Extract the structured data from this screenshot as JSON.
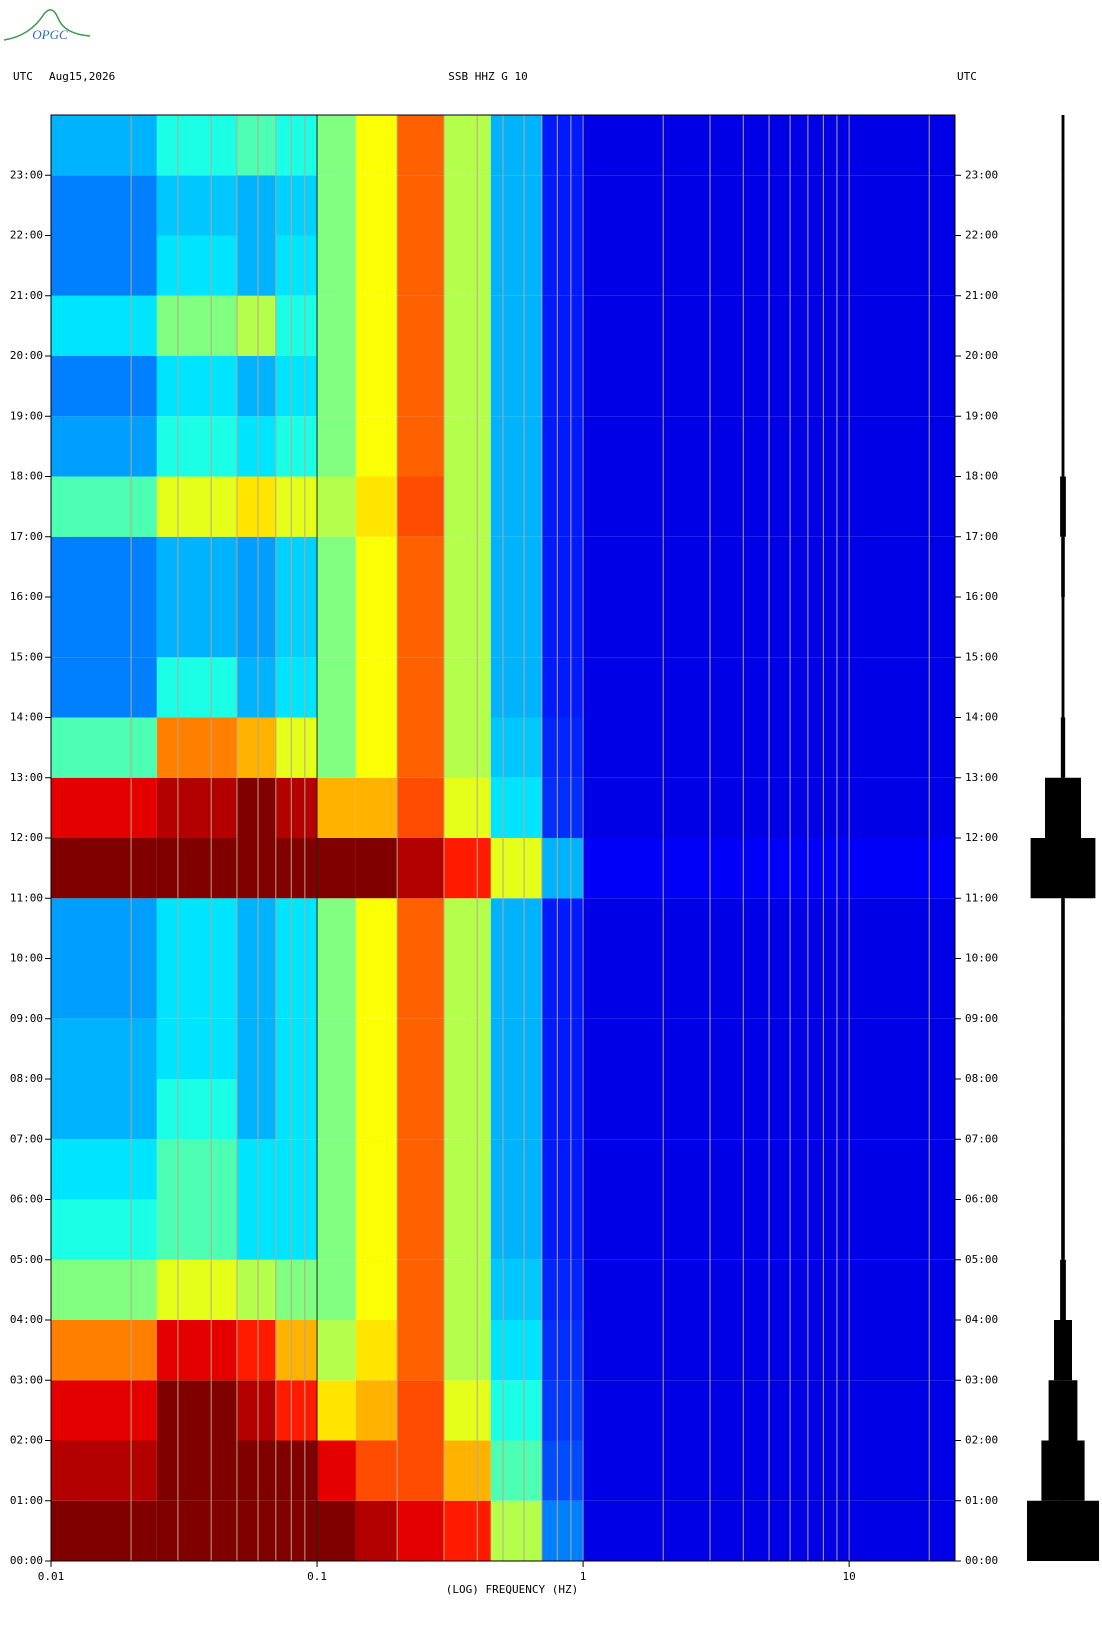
{
  "chart_data": {
    "type": "spectrogram",
    "logo": "OPGC",
    "left_label": "UTC",
    "date": "Aug15,2026",
    "title": "SSB HHZ G 10",
    "right_label": "UTC",
    "xlabel": "(LOG) FREQUENCY (HZ)",
    "xscale": "log",
    "xlim": [
      0.01,
      25
    ],
    "xticks": [
      0.01,
      0.1,
      1,
      10
    ],
    "minor_xticks": [
      0.02,
      0.03,
      0.04,
      0.05,
      0.06,
      0.07,
      0.08,
      0.09,
      0.2,
      0.3,
      0.4,
      0.5,
      0.6,
      0.7,
      0.8,
      0.9,
      2,
      3,
      4,
      5,
      6,
      7,
      8,
      9,
      20
    ],
    "ylim": [
      0,
      24
    ],
    "yticks": [
      {
        "value": 0,
        "label": "00:00"
      },
      {
        "value": 1,
        "label": "01:00"
      },
      {
        "value": 2,
        "label": "02:00"
      },
      {
        "value": 3,
        "label": "03:00"
      },
      {
        "value": 4,
        "label": "04:00"
      },
      {
        "value": 5,
        "label": "05:00"
      },
      {
        "value": 6,
        "label": "06:00"
      },
      {
        "value": 7,
        "label": "07:00"
      },
      {
        "value": 8,
        "label": "08:00"
      },
      {
        "value": 9,
        "label": "09:00"
      },
      {
        "value": 10,
        "label": "10:00"
      },
      {
        "value": 11,
        "label": "11:00"
      },
      {
        "value": 12,
        "label": "12:00"
      },
      {
        "value": 13,
        "label": "13:00"
      },
      {
        "value": 14,
        "label": "14:00"
      },
      {
        "value": 15,
        "label": "15:00"
      },
      {
        "value": 16,
        "label": "16:00"
      },
      {
        "value": 17,
        "label": "17:00"
      },
      {
        "value": 18,
        "label": "18:00"
      },
      {
        "value": 19,
        "label": "19:00"
      },
      {
        "value": 20,
        "label": "20:00"
      },
      {
        "value": 21,
        "label": "21:00"
      },
      {
        "value": 22,
        "label": "22:00"
      },
      {
        "value": 23,
        "label": "23:00"
      }
    ],
    "colormap": "jet",
    "freq_edges": [
      0.01,
      0.025,
      0.05,
      0.07,
      0.1,
      0.14,
      0.2,
      0.3,
      0.45,
      0.7,
      1,
      25
    ],
    "z": [
      [
        1,
        1,
        1,
        1,
        1,
        0.95,
        0.9,
        0.85,
        0.55,
        0.25,
        0.1
      ],
      [
        0.95,
        1,
        1,
        1,
        0.9,
        0.8,
        0.8,
        0.7,
        0.45,
        0.2,
        0.1
      ],
      [
        0.9,
        1,
        0.95,
        0.85,
        0.65,
        0.7,
        0.8,
        0.6,
        0.4,
        0.18,
        0.1
      ],
      [
        0.75,
        0.9,
        0.85,
        0.7,
        0.55,
        0.65,
        0.78,
        0.55,
        0.35,
        0.17,
        0.1
      ],
      [
        0.5,
        0.6,
        0.55,
        0.5,
        0.5,
        0.62,
        0.78,
        0.55,
        0.32,
        0.16,
        0.1
      ],
      [
        0.4,
        0.45,
        0.35,
        0.35,
        0.5,
        0.62,
        0.78,
        0.55,
        0.3,
        0.15,
        0.1
      ],
      [
        0.35,
        0.45,
        0.35,
        0.35,
        0.5,
        0.62,
        0.78,
        0.55,
        0.3,
        0.15,
        0.1
      ],
      [
        0.3,
        0.4,
        0.3,
        0.35,
        0.5,
        0.62,
        0.78,
        0.55,
        0.3,
        0.15,
        0.1
      ],
      [
        0.3,
        0.35,
        0.3,
        0.35,
        0.5,
        0.62,
        0.78,
        0.55,
        0.3,
        0.15,
        0.1
      ],
      [
        0.28,
        0.35,
        0.3,
        0.35,
        0.5,
        0.62,
        0.78,
        0.55,
        0.3,
        0.15,
        0.1
      ],
      [
        0.28,
        0.35,
        0.3,
        0.35,
        0.5,
        0.62,
        0.78,
        0.55,
        0.3,
        0.15,
        0.1
      ],
      [
        1,
        1,
        1,
        1,
        1,
        1,
        0.95,
        0.85,
        0.6,
        0.3,
        0.12
      ],
      [
        0.9,
        0.95,
        1,
        0.95,
        0.7,
        0.7,
        0.8,
        0.6,
        0.35,
        0.17,
        0.1
      ],
      [
        0.45,
        0.75,
        0.7,
        0.6,
        0.5,
        0.62,
        0.78,
        0.55,
        0.32,
        0.16,
        0.1
      ],
      [
        0.25,
        0.4,
        0.3,
        0.35,
        0.5,
        0.62,
        0.78,
        0.55,
        0.3,
        0.15,
        0.1
      ],
      [
        0.25,
        0.3,
        0.28,
        0.33,
        0.5,
        0.62,
        0.78,
        0.55,
        0.3,
        0.15,
        0.1
      ],
      [
        0.25,
        0.3,
        0.28,
        0.33,
        0.5,
        0.62,
        0.78,
        0.55,
        0.3,
        0.15,
        0.1
      ],
      [
        0.45,
        0.6,
        0.65,
        0.6,
        0.55,
        0.65,
        0.8,
        0.55,
        0.3,
        0.15,
        0.1
      ],
      [
        0.28,
        0.4,
        0.35,
        0.4,
        0.5,
        0.62,
        0.78,
        0.55,
        0.3,
        0.15,
        0.1
      ],
      [
        0.25,
        0.35,
        0.3,
        0.35,
        0.5,
        0.62,
        0.78,
        0.55,
        0.3,
        0.15,
        0.1
      ],
      [
        0.35,
        0.5,
        0.55,
        0.4,
        0.5,
        0.62,
        0.78,
        0.55,
        0.3,
        0.15,
        0.1
      ],
      [
        0.25,
        0.35,
        0.3,
        0.35,
        0.5,
        0.62,
        0.78,
        0.55,
        0.3,
        0.15,
        0.1
      ],
      [
        0.25,
        0.32,
        0.3,
        0.33,
        0.5,
        0.62,
        0.78,
        0.55,
        0.3,
        0.15,
        0.1
      ],
      [
        0.3,
        0.4,
        0.45,
        0.4,
        0.5,
        0.62,
        0.78,
        0.55,
        0.3,
        0.15,
        0.1
      ]
    ],
    "trace_amplitude": [
      1,
      0.6,
      0.4,
      0.25,
      0.08,
      0.05,
      0.05,
      0.05,
      0.05,
      0.05,
      0.05,
      0.9,
      0.5,
      0.06,
      0.04,
      0.04,
      0.05,
      0.08,
      0.04,
      0.04,
      0.04,
      0.04,
      0.04,
      0.04
    ]
  }
}
